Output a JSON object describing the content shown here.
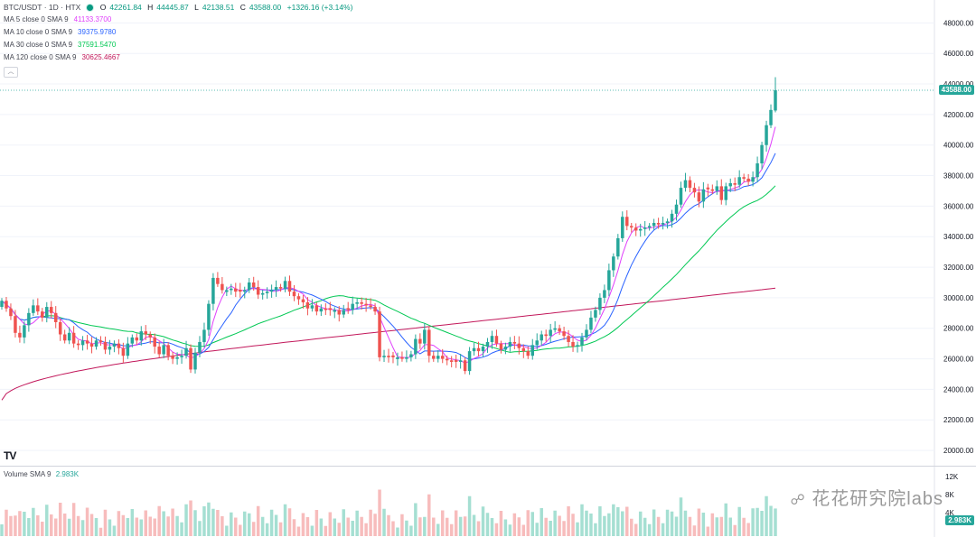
{
  "symbol": {
    "title": "BTC/USDT · 1D · HTX",
    "open_label": "O",
    "open": "42261.84",
    "high_label": "H",
    "high": "44445.87",
    "low_label": "L",
    "low": "42138.51",
    "close_label": "C",
    "close": "43588.00",
    "change": "+1326.16 (+3.14%)"
  },
  "indicators": [
    {
      "label": "MA 5 close 0 SMA 9",
      "value": "41133.3700",
      "color": "#e040fb"
    },
    {
      "label": "MA 10 close 0 SMA 9",
      "value": "39375.9780",
      "color": "#2962ff"
    },
    {
      "label": "MA 30 close 0 SMA 9",
      "value": "37591.5470",
      "color": "#00c853"
    },
    {
      "label": "MA 120 close 0 SMA 9",
      "value": "30625.4667",
      "color": "#c2185b"
    }
  ],
  "collapse_icon": "chevron-up-icon",
  "last_price_tag": "43588.00",
  "volume": {
    "label": "Volume SMA 9",
    "value": "2.983K",
    "tag": "2.983K",
    "axis_ticks": [
      "12K",
      "8K",
      "4K"
    ]
  },
  "watermark": "花花研究院labs",
  "logo": "TV",
  "colors": {
    "up": "#26a69a",
    "down": "#ef5350",
    "vol_up": "#a5dfd2",
    "vol_down": "#f7bcbc",
    "grid": "#f0f3fa"
  },
  "chart_data": {
    "type": "candlestick",
    "yaxis_ticks": [
      "48000.00",
      "46000.00",
      "44000.00",
      "42000.00",
      "40000.00",
      "38000.00",
      "36000.00",
      "34000.00",
      "32000.00",
      "30000.00",
      "28000.00",
      "26000.00",
      "24000.00",
      "22000.00",
      "20000.00"
    ],
    "ylim": [
      19000,
      49500
    ],
    "closes": [
      29800,
      29300,
      28800,
      27700,
      27400,
      28200,
      29000,
      29500,
      29100,
      28700,
      29400,
      29000,
      28400,
      27600,
      27200,
      27700,
      27000,
      26900,
      27200,
      27000,
      26800,
      27200,
      27100,
      26600,
      26800,
      27000,
      26700,
      26200,
      27000,
      27400,
      27200,
      27800,
      27600,
      27400,
      26800,
      26300,
      26900,
      26200,
      26000,
      26100,
      26200,
      26700,
      25300,
      26400,
      27100,
      27900,
      29600,
      31300,
      30900,
      30500,
      30500,
      30600,
      30400,
      30400,
      30500,
      31000,
      30700,
      30200,
      30300,
      30400,
      30500,
      30700,
      30600,
      31100,
      30400,
      30100,
      29900,
      29700,
      29300,
      29500,
      29100,
      29300,
      29200,
      29200,
      29200,
      28900,
      29200,
      29200,
      29600,
      29700,
      29600,
      29500,
      29400,
      29100,
      26100,
      26200,
      26100,
      26100,
      26100,
      26000,
      26100,
      26300,
      27300,
      27000,
      27900,
      26200,
      26000,
      26200,
      26000,
      25900,
      25800,
      25800,
      25900,
      25200,
      26500,
      26700,
      26500,
      26800,
      27100,
      27500,
      27000,
      26600,
      26800,
      27100,
      27000,
      26700,
      26500,
      26200,
      26900,
      27200,
      27600,
      27500,
      27900,
      28000,
      27800,
      27500,
      27100,
      26800,
      26900,
      27400,
      27900,
      28700,
      29200,
      30000,
      30500,
      31800,
      32700,
      33900,
      35300,
      34700,
      34600,
      34400,
      34500,
      34600,
      34700,
      34900,
      34800,
      34900,
      35000,
      35500,
      36100,
      37200,
      37700,
      37200,
      36900,
      36300,
      37100,
      37100,
      37000,
      37300,
      36400,
      37300,
      37500,
      37400,
      37900,
      37800,
      37600,
      37900,
      38800,
      40000,
      41300,
      42300,
      43588
    ],
    "ma5_last": "41133.3700",
    "ma10_last": "39375.9780",
    "ma30_last": "37591.5470",
    "ma120_last": "30625.4667"
  }
}
